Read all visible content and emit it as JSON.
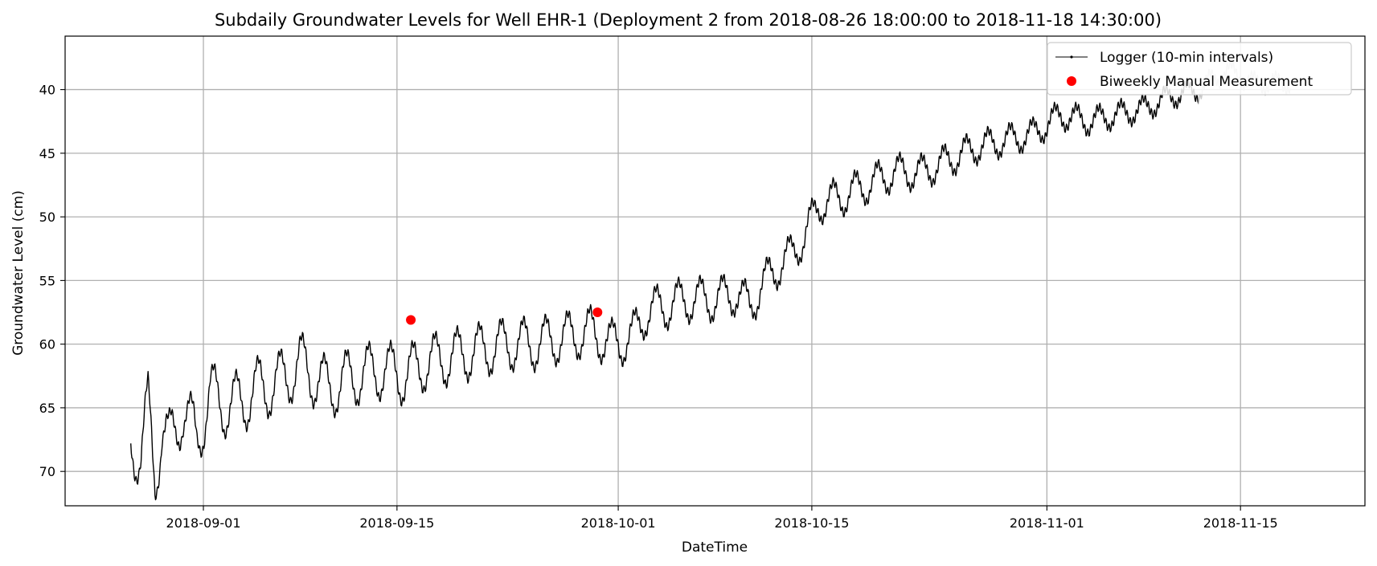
{
  "chart_data": {
    "type": "line",
    "title": "Subdaily Groundwater Levels for Well EHR-1 (Deployment 2 from 2018-08-26 18:00:00 to 2018-11-18 14:30:00)",
    "xlabel": "DateTime",
    "ylabel": "Groundwater Level (cm)",
    "x_type": "date",
    "xlim": [
      "2018-08-22",
      "2018-11-24"
    ],
    "ylim": [
      72.7,
      35.8
    ],
    "y_inverted": true,
    "x_ticks": [
      "2018-09-01",
      "2018-09-15",
      "2018-10-01",
      "2018-10-15",
      "2018-11-01",
      "2018-11-15"
    ],
    "y_ticks": [
      40,
      45,
      50,
      55,
      60,
      65,
      70
    ],
    "grid": true,
    "legend_position": "top-right",
    "series": [
      {
        "name": "Logger (10-min intervals)",
        "kind": "line",
        "color": "#000000",
        "x": [
          "2018-08-26 18:00",
          "2018-08-27 12:00",
          "2018-08-28 00:00",
          "2018-08-28 12:00",
          "2018-08-29 00:00",
          "2018-08-29 12:00",
          "2018-08-30 12:00",
          "2018-08-31 12:00",
          "2018-09-01 12:00",
          "2018-09-03 00:00",
          "2018-09-05 00:00",
          "2018-09-06 12:00",
          "2018-09-08 00:00",
          "2018-09-10 00:00",
          "2018-09-12 00:00",
          "2018-09-14 00:00",
          "2018-09-15 12:00",
          "2018-09-17 00:00",
          "2018-09-19 00:00",
          "2018-09-21 00:00",
          "2018-09-23 00:00",
          "2018-09-25 00:00",
          "2018-09-27 00:00",
          "2018-09-29 00:00",
          "2018-09-30 12:00",
          "2018-10-02 00:00",
          "2018-10-03 00:00",
          "2018-10-04 12:00",
          "2018-10-06 00:00",
          "2018-10-08 00:00",
          "2018-10-09 12:00",
          "2018-10-10 12:00",
          "2018-10-12 00:00",
          "2018-10-13 12:00",
          "2018-10-14 12:00",
          "2018-10-15 12:00",
          "2018-10-17 00:00",
          "2018-10-19 00:00",
          "2018-10-21 00:00",
          "2018-10-23 00:00",
          "2018-10-25 00:00",
          "2018-10-27 00:00",
          "2018-10-29 00:00",
          "2018-10-31 00:00",
          "2018-11-02 00:00",
          "2018-11-04 00:00",
          "2018-11-06 00:00",
          "2018-11-08 00:00",
          "2018-11-10 00:00",
          "2018-11-12 00:00",
          "2018-11-14 00:00",
          "2018-11-16 00:00",
          "2018-11-18 14:30"
        ],
        "y": [
          67.8,
          68.5,
          65.0,
          70.5,
          66.5,
          68.0,
          65.0,
          67.5,
          64.0,
          65.0,
          63.5,
          63.0,
          61.5,
          63.5,
          62.5,
          62.0,
          62.5,
          61.5,
          61.0,
          60.5,
          60.0,
          60.0,
          59.5,
          59.0,
          60.0,
          59.5,
          57.5,
          57.0,
          56.5,
          56.5,
          56.0,
          57.0,
          54.5,
          53.0,
          51.5,
          49.0,
          48.5,
          47.5,
          46.5,
          46.5,
          45.5,
          44.5,
          44.0,
          43.5,
          42.0,
          42.5,
          42.0,
          41.5,
          40.5,
          40.0,
          38.5,
          39.5,
          39.5
        ]
      },
      {
        "name": "Biweekly Manual Measurement",
        "kind": "scatter",
        "color": "#ff0000",
        "x": [
          "2018-09-16 00:00",
          "2018-09-29 12:00"
        ],
        "y": [
          58.1,
          57.5
        ]
      }
    ]
  }
}
